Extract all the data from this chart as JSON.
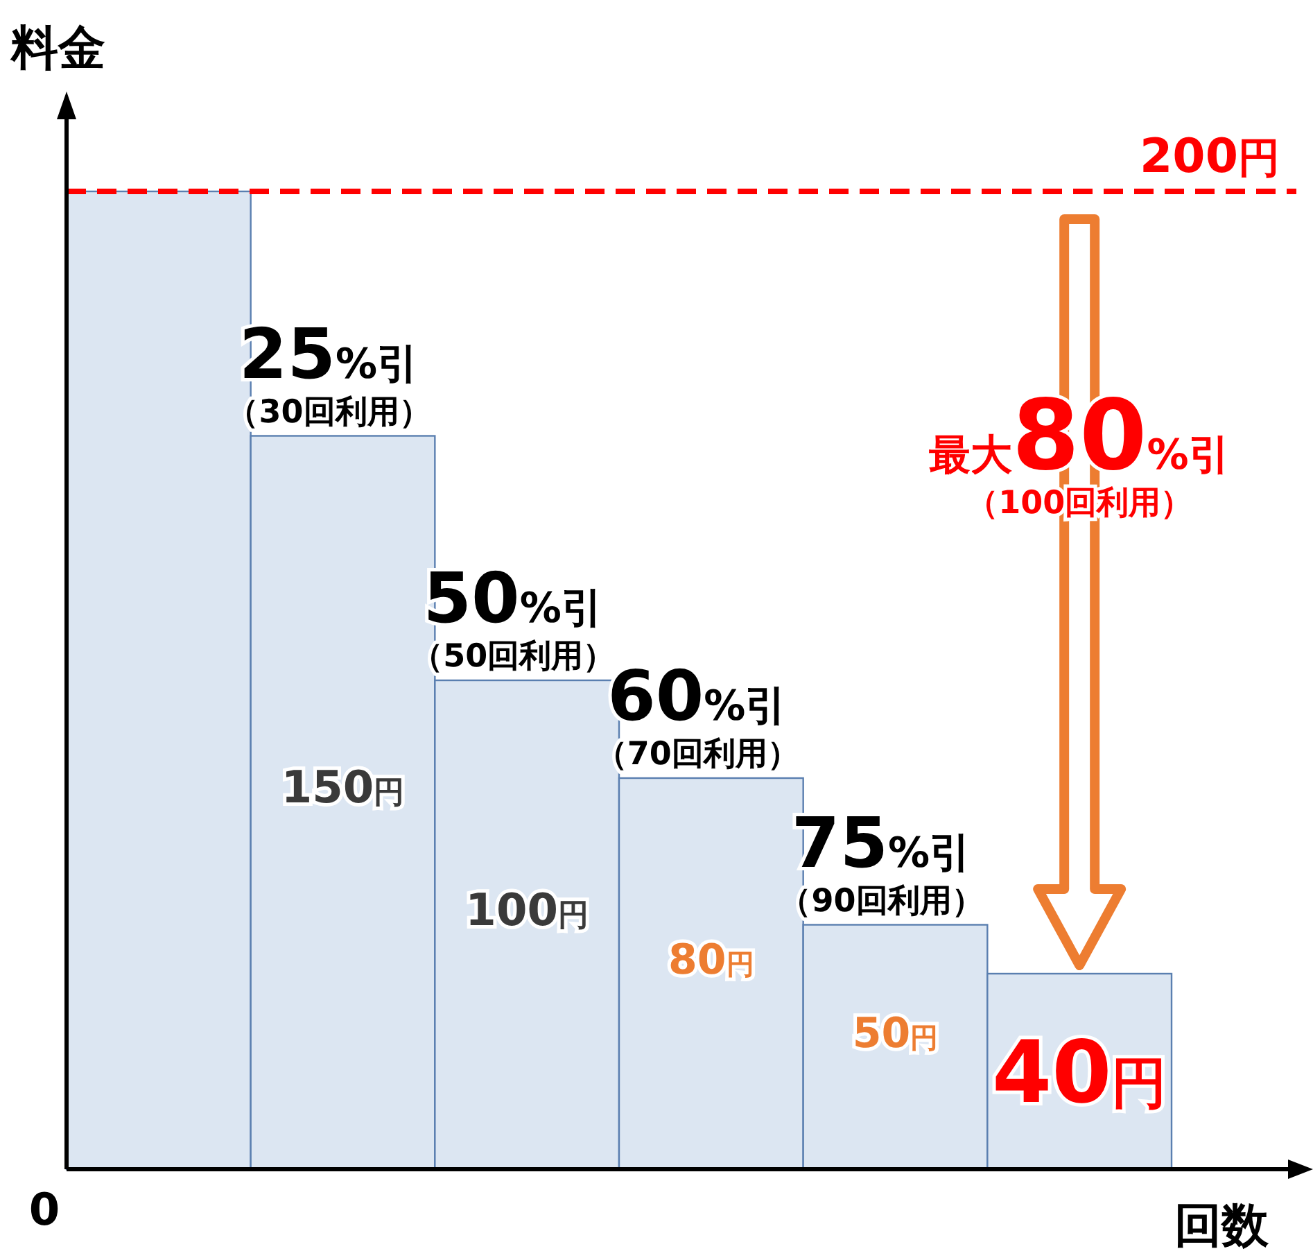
{
  "chart_data": {
    "type": "bar",
    "xlabel": "回数",
    "ylabel": "料金",
    "categories": [
      null,
      null,
      null,
      null,
      null,
      null
    ],
    "series": [
      {
        "color": "#dce6f2",
        "values": [
          200,
          150,
          100,
          80,
          50,
          40
        ],
        "value_labels": [
          null,
          "150円",
          "100円",
          "80円",
          "50円",
          "40円"
        ]
      }
    ],
    "ref_lines": [
      {
        "axis": "y",
        "value": 200,
        "label": "200円",
        "color": "#ff0000",
        "line_style": "dashed"
      }
    ],
    "annotations": [
      "0",
      "25%引",
      "（30回利用）",
      "50%引",
      "（50回利用）",
      "60%引",
      "（70回利用）",
      "75%引",
      "（90回利用）",
      "最大80%引",
      "（100回利用）"
    ]
  }
}
